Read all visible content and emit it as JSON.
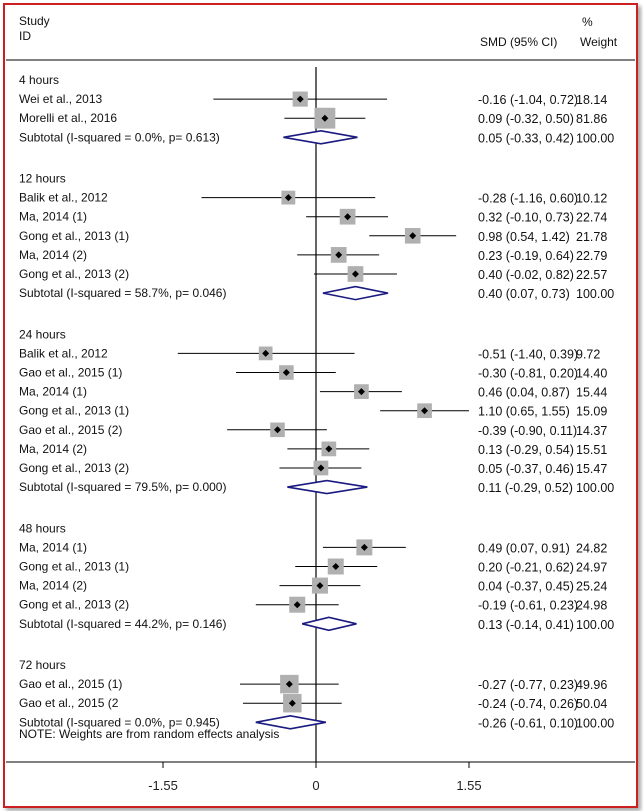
{
  "header": {
    "study": "Study",
    "id": "ID",
    "effect": "SMD (95% CI)",
    "pct": "%",
    "weight": "Weight"
  },
  "note": "NOTE: Weights are from random effects analysis",
  "colors": {
    "border": "#cc1f1f",
    "diamond": "#1a1a80",
    "box": "#b0b0b0",
    "line": "#000000"
  },
  "chart_data": {
    "type": "forest",
    "x_ticks": [
      -1.55,
      0,
      1.55
    ],
    "x_tick_labels": [
      "-1.55",
      "0",
      "1.55"
    ],
    "null_line": 0,
    "groups": [
      {
        "label": "4 hours",
        "studies": [
          {
            "label": "Wei et al., 2013",
            "est": -0.16,
            "lo": -1.04,
            "hi": 0.72,
            "ci_text": "-0.16 (-1.04, 0.72)",
            "weight": "18.14"
          },
          {
            "label": "Morelli et al., 2016",
            "est": 0.09,
            "lo": -0.32,
            "hi": 0.5,
            "ci_text": "0.09 (-0.32, 0.50)",
            "weight": "81.86"
          }
        ],
        "subtotal": {
          "label": "Subtotal  (I-squared = 0.0%, p= 0.613)",
          "est": 0.05,
          "lo": -0.33,
          "hi": 0.42,
          "ci_text": "0.05 (-0.33, 0.42)",
          "weight": "100.00"
        }
      },
      {
        "label": "12 hours",
        "studies": [
          {
            "label": "Balik et al., 2012",
            "est": -0.28,
            "lo": -1.16,
            "hi": 0.6,
            "ci_text": "-0.28 (-1.16, 0.60)",
            "weight": "10.12"
          },
          {
            "label": "Ma, 2014 (1)",
            "est": 0.32,
            "lo": -0.1,
            "hi": 0.73,
            "ci_text": "0.32 (-0.10, 0.73)",
            "weight": "22.74"
          },
          {
            "label": "Gong et al.,  2013 (1)",
            "est": 0.98,
            "lo": 0.54,
            "hi": 1.42,
            "ci_text": "0.98 (0.54, 1.42)",
            "weight": "21.78"
          },
          {
            "label": "Ma, 2014 (2)",
            "est": 0.23,
            "lo": -0.19,
            "hi": 0.64,
            "ci_text": "0.23 (-0.19, 0.64)",
            "weight": "22.79"
          },
          {
            "label": "Gong et al.,  2013 (2)",
            "est": 0.4,
            "lo": -0.02,
            "hi": 0.82,
            "ci_text": "0.40 (-0.02, 0.82)",
            "weight": "22.57"
          }
        ],
        "subtotal": {
          "label": "Subtotal  (I-squared = 58.7%, p= 0.046)",
          "est": 0.4,
          "lo": 0.07,
          "hi": 0.73,
          "ci_text": "0.40 (0.07, 0.73)",
          "weight": "100.00"
        }
      },
      {
        "label": "24 hours",
        "studies": [
          {
            "label": "Balik et al., 2012",
            "est": -0.51,
            "lo": -1.4,
            "hi": 0.39,
            "ci_text": "-0.51 (-1.40, 0.39)",
            "weight": "9.72"
          },
          {
            "label": "Gao et al., 2015 (1)",
            "est": -0.3,
            "lo": -0.81,
            "hi": 0.2,
            "ci_text": "-0.30 (-0.81, 0.20)",
            "weight": "14.40"
          },
          {
            "label": "Ma, 2014 (1)",
            "est": 0.46,
            "lo": 0.04,
            "hi": 0.87,
            "ci_text": "0.46 (0.04, 0.87)",
            "weight": "15.44"
          },
          {
            "label": "Gong et al.,  2013 (1)",
            "est": 1.1,
            "lo": 0.65,
            "hi": 1.55,
            "ci_text": "1.10 (0.65, 1.55)",
            "weight": "15.09"
          },
          {
            "label": "Gao et al., 2015 (2)",
            "est": -0.39,
            "lo": -0.9,
            "hi": 0.11,
            "ci_text": "-0.39 (-0.90, 0.11)",
            "weight": "14.37"
          },
          {
            "label": "Ma, 2014 (2)",
            "est": 0.13,
            "lo": -0.29,
            "hi": 0.54,
            "ci_text": "0.13 (-0.29, 0.54)",
            "weight": "15.51"
          },
          {
            "label": "Gong et al.,  2013 (2)",
            "est": 0.05,
            "lo": -0.37,
            "hi": 0.46,
            "ci_text": "0.05 (-0.37, 0.46)",
            "weight": "15.47"
          }
        ],
        "subtotal": {
          "label": "Subtotal  (I-squared = 79.5%, p= 0.000)",
          "est": 0.11,
          "lo": -0.29,
          "hi": 0.52,
          "ci_text": "0.11 (-0.29, 0.52)",
          "weight": "100.00"
        }
      },
      {
        "label": "48 hours",
        "studies": [
          {
            "label": "Ma, 2014 (1)",
            "est": 0.49,
            "lo": 0.07,
            "hi": 0.91,
            "ci_text": "0.49 (0.07, 0.91)",
            "weight": "24.82"
          },
          {
            "label": "Gong et al.,  2013 (1)",
            "est": 0.2,
            "lo": -0.21,
            "hi": 0.62,
            "ci_text": "0.20 (-0.21, 0.62)",
            "weight": "24.97"
          },
          {
            "label": "Ma, 2014 (2)",
            "est": 0.04,
            "lo": -0.37,
            "hi": 0.45,
            "ci_text": "0.04 (-0.37, 0.45)",
            "weight": "25.24"
          },
          {
            "label": "Gong et al.,  2013 (2)",
            "est": -0.19,
            "lo": -0.61,
            "hi": 0.23,
            "ci_text": "-0.19 (-0.61, 0.23)",
            "weight": "24.98"
          }
        ],
        "subtotal": {
          "label": "Subtotal  (I-squared = 44.2%, p= 0.146)",
          "est": 0.13,
          "lo": -0.14,
          "hi": 0.41,
          "ci_text": "0.13 (-0.14, 0.41)",
          "weight": "100.00"
        }
      },
      {
        "label": "72 hours",
        "studies": [
          {
            "label": "Gao et al., 2015 (1)",
            "est": -0.27,
            "lo": -0.77,
            "hi": 0.23,
            "ci_text": "-0.27 (-0.77, 0.23)",
            "weight": "49.96"
          },
          {
            "label": "Gao et al., 2015 (2",
            "est": -0.24,
            "lo": -0.74,
            "hi": 0.26,
            "ci_text": "-0.24 (-0.74, 0.26)",
            "weight": "50.04"
          }
        ],
        "subtotal": {
          "label": "Subtotal  (I-squared = 0.0%, p= 0.945)",
          "est": -0.26,
          "lo": -0.61,
          "hi": 0.1,
          "ci_text": "-0.26 (-0.61, 0.10)",
          "weight": "100.00"
        }
      }
    ]
  }
}
